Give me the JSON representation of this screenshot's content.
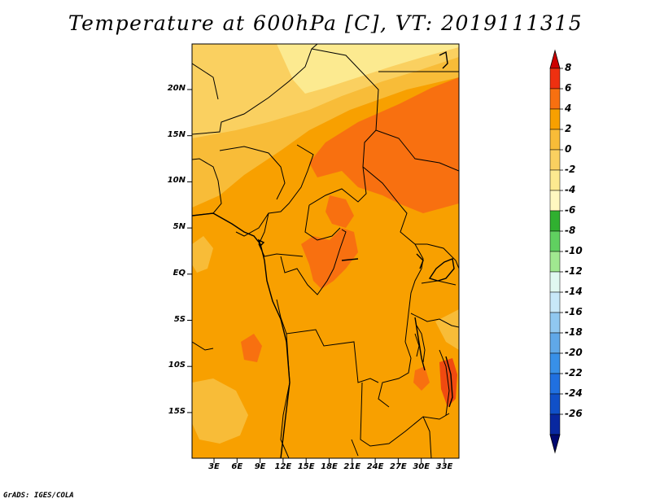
{
  "title": "Temperature at 600hPa [C], VT: 2019111315",
  "credit": "GrADS: IGES/COLA",
  "map": {
    "lat_labels": [
      "20N",
      "15N",
      "10N",
      "5N",
      "EQ",
      "5S",
      "10S",
      "15S"
    ],
    "lon_labels": [
      "3E",
      "6E",
      "9E",
      "12E",
      "15E",
      "18E",
      "21E",
      "24E",
      "27E",
      "30E",
      "33E"
    ],
    "colors": {
      "base": "#f8a000",
      "light": "#f8bc38",
      "lighter": "#fad060",
      "pale": "#fcea90",
      "warm": "#f87010",
      "warmer": "#f04a10"
    }
  },
  "colorbar": {
    "labels": [
      "8",
      "6",
      "4",
      "2",
      "0",
      "-2",
      "-4",
      "-6",
      "-8",
      "-10",
      "-12",
      "-14",
      "-16",
      "-18",
      "-20",
      "-22",
      "-24",
      "-26"
    ],
    "colors": [
      "#cc0000",
      "#ee3010",
      "#f87010",
      "#f8a000",
      "#f8bc38",
      "#fad060",
      "#fcea90",
      "#fff8c0",
      "#30b030",
      "#60d060",
      "#a0e890",
      "#e0f8f0",
      "#c8e8f8",
      "#90c8f0",
      "#60a8e8",
      "#3890e8",
      "#2070e0",
      "#1050c8",
      "#0828a0",
      "#000870"
    ]
  }
}
